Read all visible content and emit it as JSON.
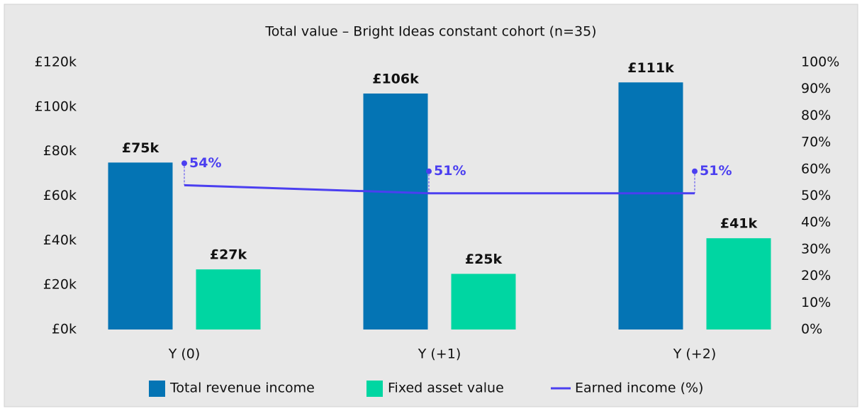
{
  "chart_data": {
    "type": "bar",
    "title": "Total value – Bright Ideas constant cohort (n=35)",
    "categories": [
      "Y (0)",
      "Y (+1)",
      "Y (+2)"
    ],
    "series": [
      {
        "name": "Total revenue income",
        "type": "bar",
        "color": "#0474b4",
        "values": [
          75,
          106,
          111
        ],
        "value_labels": [
          "£75k",
          "£106k",
          "£111k"
        ]
      },
      {
        "name": "Fixed asset value",
        "type": "bar",
        "color": "#00d6a2",
        "values": [
          27,
          25,
          41
        ],
        "value_labels": [
          "£27k",
          "£25k",
          "£41k"
        ]
      },
      {
        "name": "Earned income (%)",
        "type": "line",
        "axis": "y2",
        "color": "#4b3ff0",
        "values": [
          54,
          51,
          51
        ],
        "value_labels": [
          "54%",
          "51%",
          "51%"
        ]
      }
    ],
    "ylim": [
      0,
      120
    ],
    "yticks": [
      {
        "value": 0,
        "label": "£0k"
      },
      {
        "value": 20,
        "label": "£20k"
      },
      {
        "value": 40,
        "label": "£40k"
      },
      {
        "value": 60,
        "label": "£60k"
      },
      {
        "value": 80,
        "label": "£80k"
      },
      {
        "value": 100,
        "label": "£100k"
      },
      {
        "value": 120,
        "label": "£120k"
      }
    ],
    "y2lim": [
      0,
      100
    ],
    "y2ticks": [
      {
        "value": 0,
        "label": "0%"
      },
      {
        "value": 10,
        "label": "10%"
      },
      {
        "value": 20,
        "label": "20%"
      },
      {
        "value": 30,
        "label": "30%"
      },
      {
        "value": 40,
        "label": "40%"
      },
      {
        "value": 50,
        "label": "50%"
      },
      {
        "value": 60,
        "label": "60%"
      },
      {
        "value": 70,
        "label": "70%"
      },
      {
        "value": 80,
        "label": "80%"
      },
      {
        "value": 90,
        "label": "90%"
      },
      {
        "value": 100,
        "label": "100%"
      }
    ],
    "grid": false,
    "legend": "bottom"
  }
}
